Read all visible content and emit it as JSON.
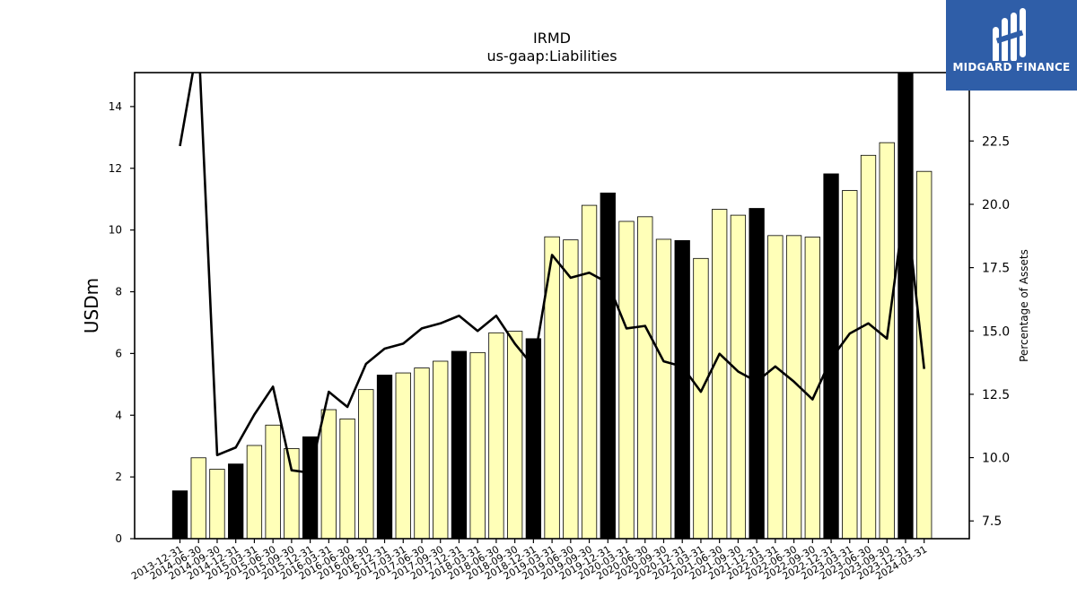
{
  "chart_data": {
    "type": "bar",
    "title": "IRMD",
    "subtitle": "us-gaap:Liabilities",
    "ylabel": "USDm",
    "y2label": "Percentage of Assets",
    "ylim": [
      0,
      15.1
    ],
    "y2lim": [
      6.8,
      25.2
    ],
    "yticks": [
      0,
      2,
      4,
      6,
      8,
      10,
      12,
      14
    ],
    "y2ticks": [
      7.5,
      10.0,
      12.5,
      15.0,
      17.5,
      20.0,
      22.5
    ],
    "grid": false,
    "categories": [
      "2013-12-31",
      "2014-06-30",
      "2014-09-30",
      "2014-12-31",
      "2015-03-31",
      "2015-06-30",
      "2015-09-30",
      "2015-12-31",
      "2016-03-31",
      "2016-06-30",
      "2016-09-30",
      "2016-12-31",
      "2017-03-31",
      "2017-06-30",
      "2017-09-30",
      "2017-12-31",
      "2018-03-31",
      "2018-06-30",
      "2018-09-30",
      "2018-12-31",
      "2019-03-31",
      "2019-06-30",
      "2019-09-30",
      "2019-12-31",
      "2020-03-31",
      "2020-06-30",
      "2020-09-30",
      "2020-12-31",
      "2021-03-31",
      "2021-06-30",
      "2021-09-30",
      "2021-12-31",
      "2022-03-31",
      "2022-06-30",
      "2022-09-30",
      "2022-12-31",
      "2023-03-31",
      "2023-06-30",
      "2023-09-30",
      "2023-12-31",
      "2024-03-31"
    ],
    "series": [
      {
        "type": "bar",
        "values": [
          1.55,
          2.62,
          2.25,
          2.42,
          3.02,
          3.68,
          2.92,
          3.3,
          4.18,
          3.88,
          4.83,
          5.3,
          5.37,
          5.53,
          5.75,
          6.07,
          6.03,
          6.67,
          6.72,
          6.48,
          9.78,
          9.68,
          10.8,
          11.2,
          10.28,
          10.43,
          9.7,
          9.66,
          9.08,
          10.67,
          10.48,
          10.7,
          9.82,
          9.82,
          9.77,
          11.82,
          11.28,
          12.42,
          12.83,
          15.1,
          11.9
        ],
        "highlight": [
          true,
          false,
          false,
          true,
          false,
          false,
          false,
          true,
          false,
          false,
          false,
          true,
          false,
          false,
          false,
          true,
          false,
          false,
          false,
          true,
          false,
          false,
          false,
          true,
          false,
          false,
          false,
          true,
          false,
          false,
          false,
          true,
          false,
          false,
          false,
          true,
          false,
          false,
          false,
          true,
          false
        ]
      },
      {
        "type": "line",
        "axis": "right",
        "values": [
          22.3,
          26.5,
          10.1,
          10.4,
          11.7,
          12.8,
          9.5,
          9.4,
          12.6,
          12.0,
          13.7,
          14.3,
          14.5,
          15.1,
          15.3,
          15.6,
          15.0,
          15.6,
          14.5,
          13.6,
          18.0,
          17.1,
          17.3,
          16.9,
          15.1,
          15.2,
          13.8,
          13.6,
          12.6,
          14.1,
          13.4,
          13.0,
          13.6,
          13.0,
          12.3,
          13.9,
          14.9,
          15.3,
          14.7,
          20.2,
          13.5
        ]
      }
    ],
    "colors": {
      "bar": "#ffffb8",
      "bar_highlight": "#000000",
      "line": "#000000"
    }
  },
  "logo": {
    "text": "MIDGARD FINANCE"
  }
}
